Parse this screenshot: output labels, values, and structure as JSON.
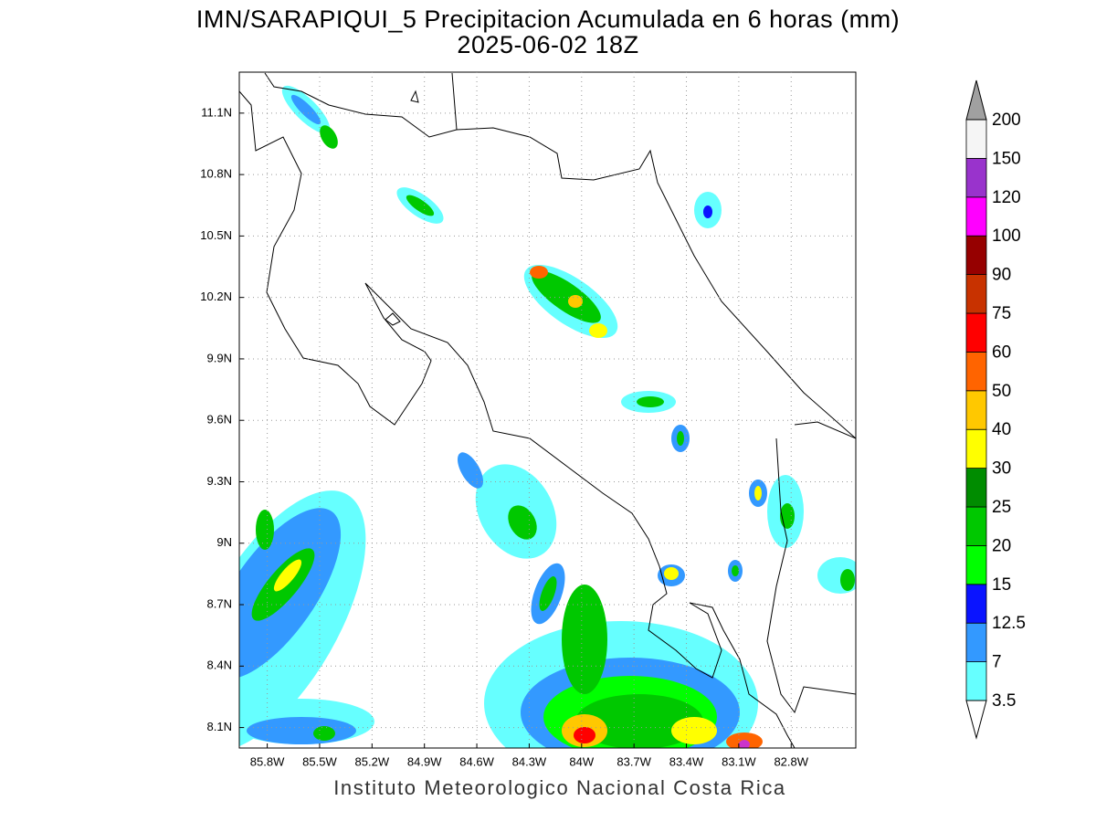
{
  "title": "IMN/SARAPIQUI_5 Precipitacion Acumulada en 6 horas (mm)",
  "subtitle": "2025-06-02 18Z",
  "map": {
    "lonlim": [
      -85.96,
      -82.43
    ],
    "latlim": [
      8.0,
      11.3
    ],
    "lon_ticks": [
      {
        "value": -85.8,
        "label": "85.8W"
      },
      {
        "value": -85.5,
        "label": "85.5W"
      },
      {
        "value": -85.2,
        "label": "85.2W"
      },
      {
        "value": -84.9,
        "label": "84.9W"
      },
      {
        "value": -84.6,
        "label": "84.6W"
      },
      {
        "value": -84.3,
        "label": "84.3W"
      },
      {
        "value": -84.0,
        "label": "84W"
      },
      {
        "value": -83.7,
        "label": "83.7W"
      },
      {
        "value": -83.4,
        "label": "83.4W"
      },
      {
        "value": -83.1,
        "label": "83.1W"
      },
      {
        "value": -82.8,
        "label": "82.8W"
      }
    ],
    "lat_ticks": [
      {
        "value": 11.1,
        "label": "11.1N"
      },
      {
        "value": 10.8,
        "label": "10.8N"
      },
      {
        "value": 10.5,
        "label": "10.5N"
      },
      {
        "value": 10.2,
        "label": "10.2N"
      },
      {
        "value": 9.9,
        "label": "9.9N"
      },
      {
        "value": 9.6,
        "label": "9.6N"
      },
      {
        "value": 9.3,
        "label": "9.3N"
      },
      {
        "value": 9.0,
        "label": "9N"
      },
      {
        "value": 8.7,
        "label": "8.7N"
      },
      {
        "value": 8.4,
        "label": "8.4N"
      },
      {
        "value": 8.1,
        "label": "8.1N"
      }
    ],
    "grid": true
  },
  "colorbar": {
    "levels": [
      3.5,
      7,
      12.5,
      15,
      20,
      25,
      30,
      40,
      50,
      60,
      75,
      90,
      100,
      120,
      150,
      200
    ],
    "colors": [
      "#66ffff",
      "#3399ff",
      "#0a14ff",
      "#00ff00",
      "#00c800",
      "#008c00",
      "#ffff00",
      "#ffc800",
      "#ff6400",
      "#ff0000",
      "#c83200",
      "#960000",
      "#ff00ff",
      "#9933cc",
      "#f5f5f5"
    ],
    "under_color": "#ffffff",
    "over_color": "#a0a0a0"
  },
  "footer": "Instituto Meteorologico Nacional Costa Rica"
}
